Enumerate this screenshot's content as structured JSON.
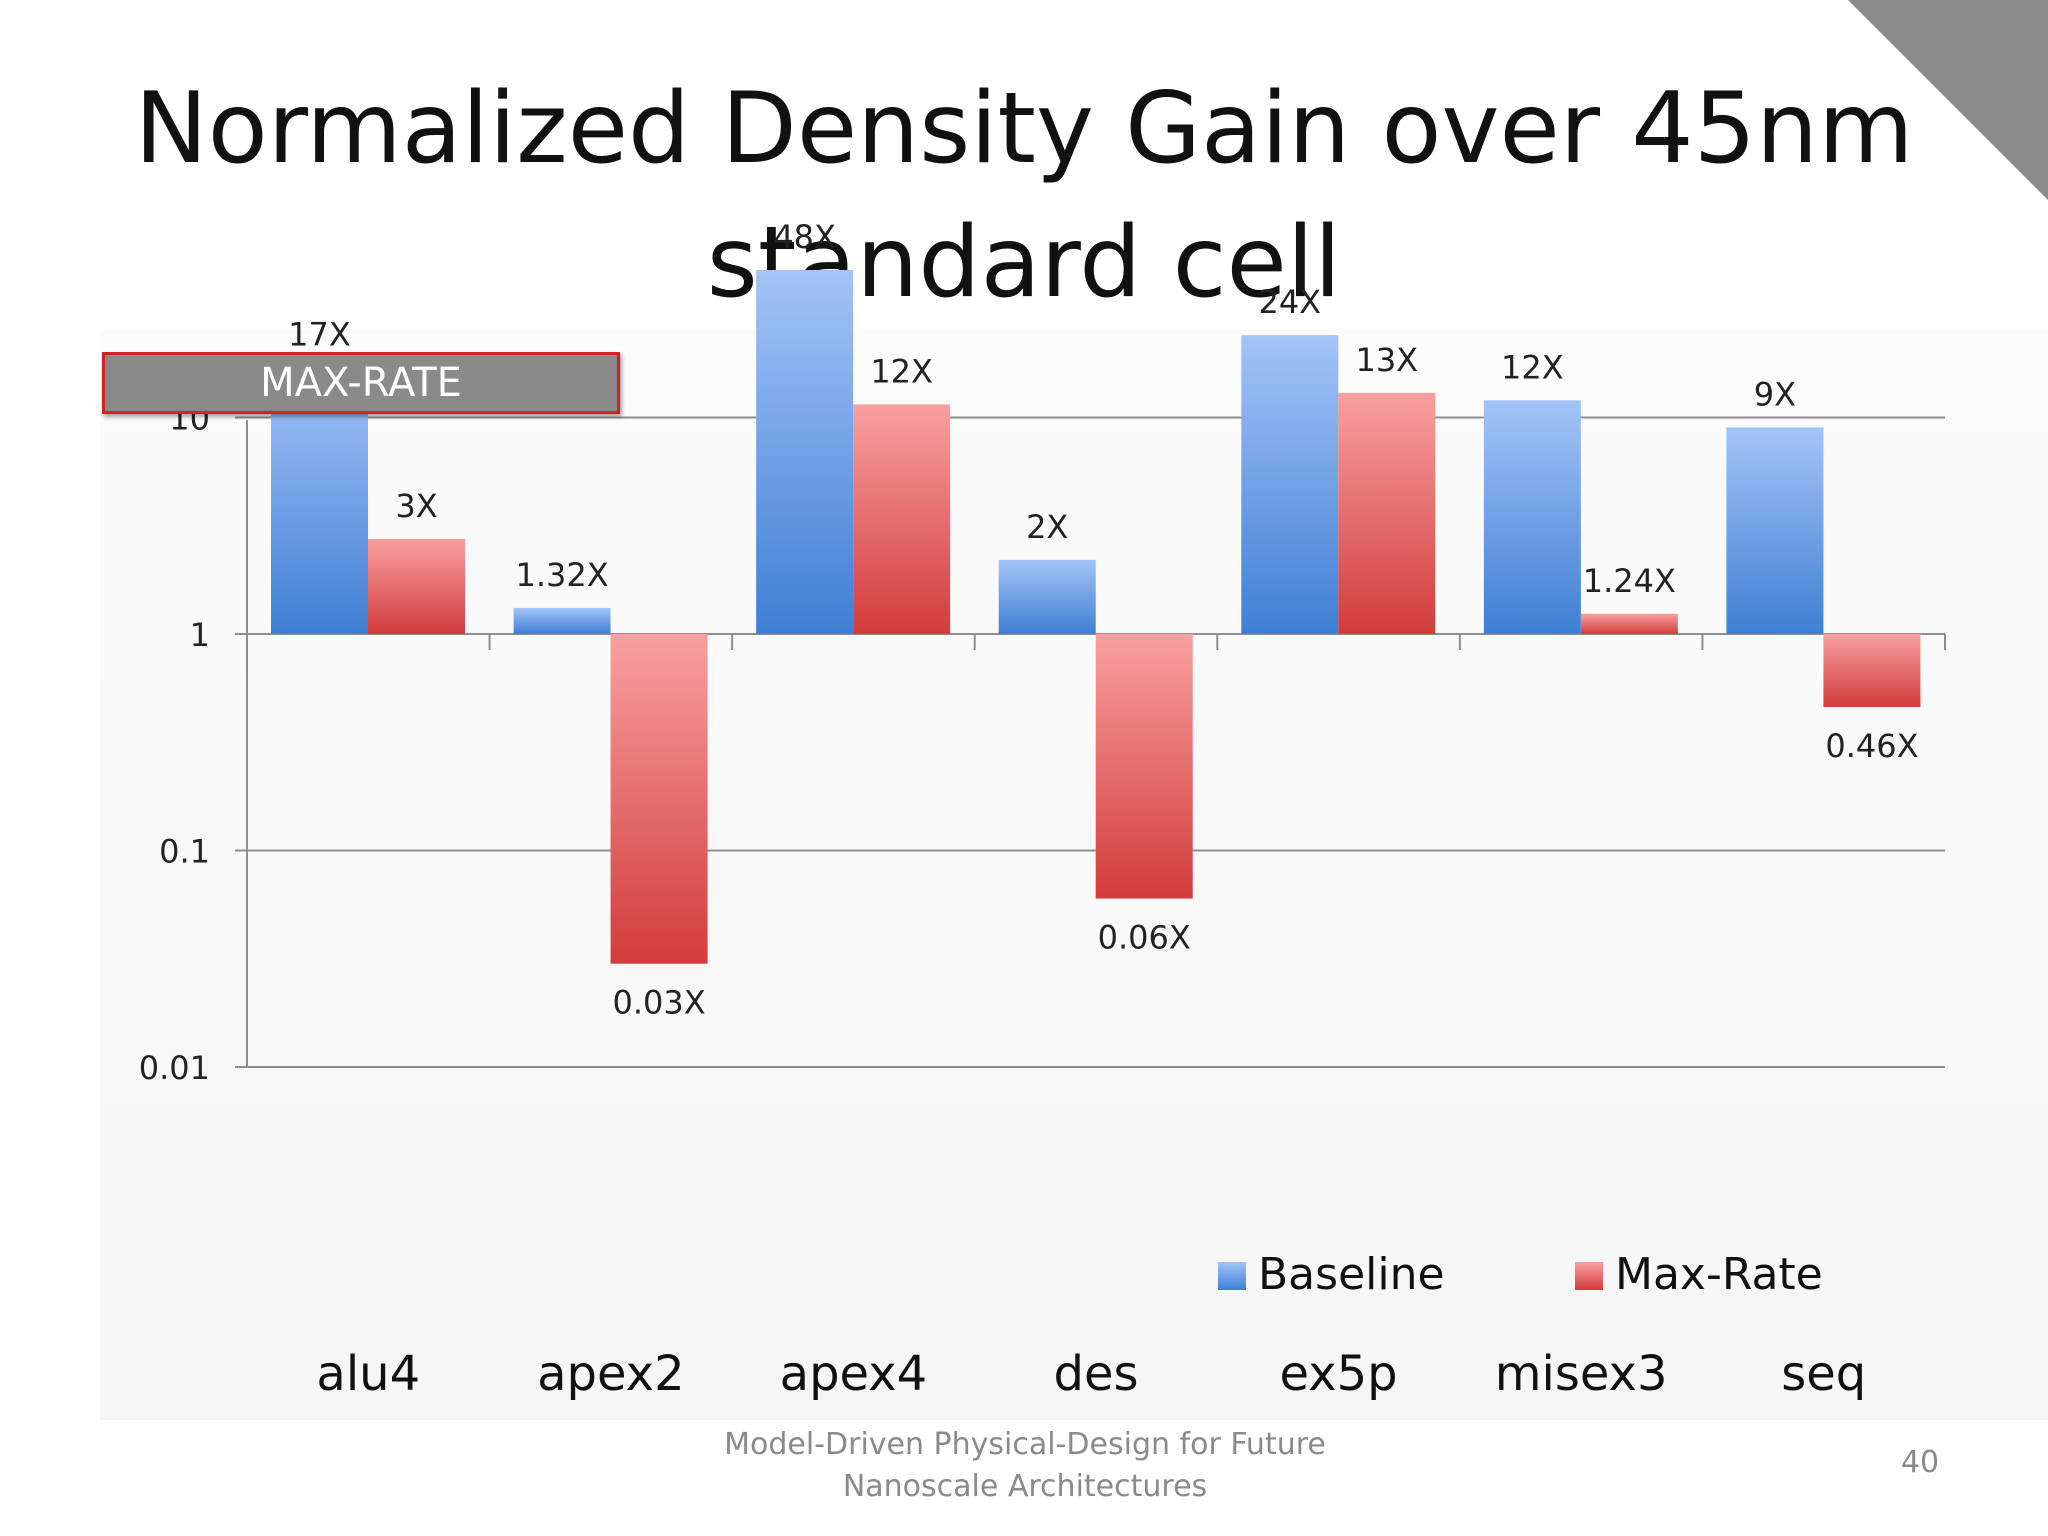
{
  "slide": {
    "title_line1": "Normalized Density Gain over 45nm",
    "title_line2": "standard cell",
    "badge": "MAX-RATE",
    "footer_line1": "Model-Driven Physical-Design for Future",
    "footer_line2": "Nanoscale Architectures",
    "page_number": "40"
  },
  "chart_data": {
    "type": "bar",
    "yscale": "log",
    "ylim": [
      0.01,
      100
    ],
    "yticks": [
      0.01,
      0.1,
      1,
      10
    ],
    "ytick_labels": [
      "0.01",
      "0.1",
      "1",
      "10"
    ],
    "baseline_value": 1,
    "grid": true,
    "legend_position": "bottom-right",
    "categories": [
      "alu4",
      "apex2",
      "apex4",
      "des",
      "ex5p",
      "misex3",
      "seq"
    ],
    "series": [
      {
        "name": "Baseline",
        "color_top": "#a3c4f7",
        "color_bottom": "#3f7fd4",
        "values": [
          17,
          1.32,
          48,
          2.2,
          24,
          12,
          9
        ],
        "labels": [
          "17X",
          "1.32X",
          "48X",
          "2X",
          "24X",
          "12X",
          "9X"
        ]
      },
      {
        "name": "Max-Rate",
        "color_top": "#f9a0a0",
        "color_bottom": "#d23c3c",
        "values": [
          2.75,
          0.03,
          11.5,
          0.06,
          13,
          1.24,
          0.46
        ],
        "labels": [
          "3X",
          "0.03X",
          "12X",
          "0.06X",
          "13X",
          "1.24X",
          "0.46X"
        ]
      }
    ]
  }
}
